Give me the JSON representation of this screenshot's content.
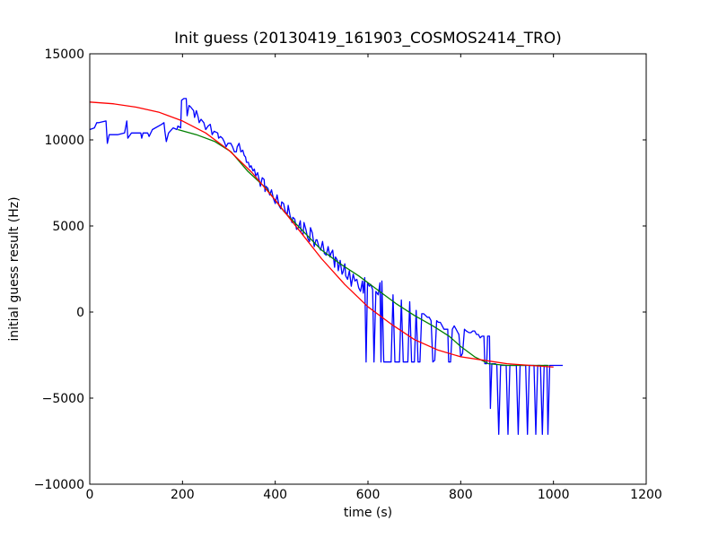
{
  "chart_data": {
    "type": "line",
    "title": "Init guess (20130419_161903_COSMOS2414_TRO)",
    "xlabel": "time (s)",
    "ylabel": "initial guess result (Hz)",
    "xlim": [
      0,
      1200
    ],
    "ylim": [
      -10000,
      15000
    ],
    "xticks": [
      0,
      200,
      400,
      600,
      800,
      1000,
      1200
    ],
    "yticks": [
      -10000,
      -5000,
      0,
      5000,
      10000,
      15000
    ],
    "grid": false,
    "series": [
      {
        "color": "#0000ff",
        "points": [
          [
            0,
            10600
          ],
          [
            10,
            10700
          ],
          [
            15,
            11000
          ],
          [
            20,
            11000
          ],
          [
            35,
            11100
          ],
          [
            38,
            9800
          ],
          [
            42,
            10300
          ],
          [
            60,
            10300
          ],
          [
            75,
            10400
          ],
          [
            80,
            11100
          ],
          [
            82,
            10100
          ],
          [
            90,
            10400
          ],
          [
            110,
            10400
          ],
          [
            112,
            10100
          ],
          [
            115,
            10400
          ],
          [
            125,
            10400
          ],
          [
            128,
            10200
          ],
          [
            135,
            10600
          ],
          [
            155,
            10900
          ],
          [
            160,
            11000
          ],
          [
            162,
            10500
          ],
          [
            165,
            9900
          ],
          [
            170,
            10400
          ],
          [
            180,
            10700
          ],
          [
            188,
            10600
          ],
          [
            190,
            10800
          ],
          [
            196,
            10700
          ],
          [
            198,
            12300
          ],
          [
            203,
            12400
          ],
          [
            208,
            12400
          ],
          [
            210,
            11400
          ],
          [
            214,
            12000
          ],
          [
            218,
            11900
          ],
          [
            224,
            11700
          ],
          [
            226,
            11300
          ],
          [
            230,
            11700
          ],
          [
            234,
            11300
          ],
          [
            236,
            11000
          ],
          [
            240,
            11200
          ],
          [
            246,
            11000
          ],
          [
            250,
            10600
          ],
          [
            255,
            10800
          ],
          [
            260,
            10900
          ],
          [
            264,
            10300
          ],
          [
            268,
            10500
          ],
          [
            276,
            10400
          ],
          [
            278,
            10100
          ],
          [
            282,
            10200
          ],
          [
            286,
            10100
          ],
          [
            290,
            9900
          ],
          [
            294,
            9600
          ],
          [
            298,
            9800
          ],
          [
            304,
            9800
          ],
          [
            308,
            9600
          ],
          [
            312,
            9300
          ],
          [
            316,
            9300
          ],
          [
            318,
            9600
          ],
          [
            322,
            9800
          ],
          [
            326,
            9300
          ],
          [
            330,
            9400
          ],
          [
            333,
            9100
          ],
          [
            336,
            9000
          ],
          [
            338,
            8700
          ],
          [
            342,
            8700
          ],
          [
            345,
            8400
          ],
          [
            348,
            8500
          ],
          [
            352,
            8200
          ],
          [
            355,
            8300
          ],
          [
            358,
            7900
          ],
          [
            362,
            8100
          ],
          [
            366,
            7600
          ],
          [
            368,
            7300
          ],
          [
            372,
            7800
          ],
          [
            376,
            7700
          ],
          [
            378,
            7000
          ],
          [
            380,
            7300
          ],
          [
            384,
            7200
          ],
          [
            388,
            6800
          ],
          [
            392,
            7100
          ],
          [
            396,
            6600
          ],
          [
            400,
            6300
          ],
          [
            404,
            6800
          ],
          [
            408,
            6200
          ],
          [
            412,
            6000
          ],
          [
            414,
            6400
          ],
          [
            418,
            6300
          ],
          [
            422,
            5800
          ],
          [
            426,
            5700
          ],
          [
            428,
            6200
          ],
          [
            432,
            5600
          ],
          [
            436,
            5200
          ],
          [
            438,
            5500
          ],
          [
            442,
            5400
          ],
          [
            446,
            4800
          ],
          [
            450,
            4900
          ],
          [
            454,
            5300
          ],
          [
            456,
            4600
          ],
          [
            460,
            4500
          ],
          [
            462,
            5200
          ],
          [
            466,
            4800
          ],
          [
            470,
            4300
          ],
          [
            474,
            4100
          ],
          [
            476,
            4900
          ],
          [
            480,
            4600
          ],
          [
            484,
            3800
          ],
          [
            488,
            4200
          ],
          [
            490,
            4200
          ],
          [
            494,
            3800
          ],
          [
            498,
            3600
          ],
          [
            502,
            4100
          ],
          [
            506,
            3400
          ],
          [
            510,
            3300
          ],
          [
            514,
            3800
          ],
          [
            518,
            3200
          ],
          [
            520,
            3400
          ],
          [
            524,
            3600
          ],
          [
            528,
            2600
          ],
          [
            530,
            3200
          ],
          [
            534,
            3000
          ],
          [
            536,
            2400
          ],
          [
            540,
            3000
          ],
          [
            544,
            2200
          ],
          [
            546,
            2300
          ],
          [
            550,
            2800
          ],
          [
            552,
            2100
          ],
          [
            556,
            1900
          ],
          [
            560,
            2400
          ],
          [
            564,
            1500
          ],
          [
            568,
            2200
          ],
          [
            572,
            1800
          ],
          [
            576,
            1900
          ],
          [
            580,
            1400
          ],
          [
            584,
            1200
          ],
          [
            588,
            1800
          ],
          [
            590,
            1100
          ],
          [
            593,
            2000
          ],
          [
            596,
            -2900
          ],
          [
            599,
            1700
          ],
          [
            603,
            1500
          ],
          [
            606,
            1600
          ],
          [
            610,
            1300
          ],
          [
            613,
            -2900
          ],
          [
            617,
            1200
          ],
          [
            622,
            1000
          ],
          [
            626,
            1700
          ],
          [
            628,
            -2900
          ],
          [
            630,
            1800
          ],
          [
            634,
            -2900
          ],
          [
            650,
            -2900
          ],
          [
            654,
            1000
          ],
          [
            658,
            -2900
          ],
          [
            668,
            -2900
          ],
          [
            672,
            700
          ],
          [
            676,
            -2900
          ],
          [
            686,
            -2900
          ],
          [
            690,
            600
          ],
          [
            694,
            -2900
          ],
          [
            700,
            -2900
          ],
          [
            704,
            100
          ],
          [
            708,
            -2900
          ],
          [
            712,
            -2900
          ],
          [
            716,
            -100
          ],
          [
            720,
            -100
          ],
          [
            724,
            -200
          ],
          [
            728,
            -300
          ],
          [
            732,
            -300
          ],
          [
            736,
            -500
          ],
          [
            740,
            -2900
          ],
          [
            744,
            -2800
          ],
          [
            748,
            -500
          ],
          [
            752,
            -600
          ],
          [
            756,
            -600
          ],
          [
            760,
            -800
          ],
          [
            764,
            -1000
          ],
          [
            768,
            -1000
          ],
          [
            772,
            -1000
          ],
          [
            774,
            -2900
          ],
          [
            778,
            -2900
          ],
          [
            782,
            -1000
          ],
          [
            786,
            -800
          ],
          [
            790,
            -1000
          ],
          [
            794,
            -1200
          ],
          [
            796,
            -1300
          ],
          [
            800,
            -2600
          ],
          [
            804,
            -2400
          ],
          [
            808,
            -1000
          ],
          [
            812,
            -1100
          ],
          [
            818,
            -1200
          ],
          [
            822,
            -1200
          ],
          [
            826,
            -1100
          ],
          [
            830,
            -1100
          ],
          [
            834,
            -1300
          ],
          [
            838,
            -1300
          ],
          [
            842,
            -1500
          ],
          [
            846,
            -1400
          ],
          [
            850,
            -1400
          ],
          [
            852,
            -3000
          ],
          [
            856,
            -3000
          ],
          [
            858,
            -1400
          ],
          [
            862,
            -1400
          ],
          [
            864,
            -5600
          ],
          [
            867,
            -3000
          ],
          [
            875,
            -3000
          ],
          [
            878,
            -3100
          ],
          [
            882,
            -7100
          ],
          [
            886,
            -3100
          ],
          [
            898,
            -3100
          ],
          [
            902,
            -7100
          ],
          [
            906,
            -3100
          ],
          [
            920,
            -3100
          ],
          [
            924,
            -7100
          ],
          [
            928,
            -3100
          ],
          [
            940,
            -3100
          ],
          [
            944,
            -7100
          ],
          [
            948,
            -3100
          ],
          [
            958,
            -3100
          ],
          [
            962,
            -7100
          ],
          [
            966,
            -3100
          ],
          [
            972,
            -3100
          ],
          [
            976,
            -7100
          ],
          [
            980,
            -3100
          ],
          [
            986,
            -3100
          ],
          [
            988,
            -7100
          ],
          [
            992,
            -3100
          ],
          [
            1000,
            -3100
          ],
          [
            1010,
            -3100
          ],
          [
            1020,
            -3100
          ]
        ]
      },
      {
        "color": "#008000",
        "points": [
          [
            190,
            10600
          ],
          [
            230,
            10300
          ],
          [
            270,
            9900
          ],
          [
            305,
            9300
          ],
          [
            340,
            8200
          ],
          [
            380,
            7200
          ],
          [
            420,
            5800
          ],
          [
            460,
            4700
          ],
          [
            500,
            3600
          ],
          [
            540,
            2800
          ],
          [
            580,
            2100
          ],
          [
            620,
            1300
          ],
          [
            660,
            500
          ],
          [
            700,
            -200
          ],
          [
            740,
            -800
          ],
          [
            775,
            -1400
          ],
          [
            800,
            -2000
          ],
          [
            830,
            -2600
          ],
          [
            860,
            -3000
          ],
          [
            900,
            -3100
          ],
          [
            940,
            -3100
          ],
          [
            980,
            -3100
          ],
          [
            990,
            -3100
          ]
        ]
      },
      {
        "color": "#ff0000",
        "points": [
          [
            0,
            12200
          ],
          [
            50,
            12100
          ],
          [
            100,
            11900
          ],
          [
            150,
            11600
          ],
          [
            200,
            11100
          ],
          [
            250,
            10400
          ],
          [
            300,
            9400
          ],
          [
            350,
            8100
          ],
          [
            400,
            6500
          ],
          [
            450,
            4800
          ],
          [
            500,
            3100
          ],
          [
            550,
            1600
          ],
          [
            600,
            300
          ],
          [
            650,
            -700
          ],
          [
            700,
            -1600
          ],
          [
            750,
            -2200
          ],
          [
            800,
            -2600
          ],
          [
            850,
            -2800
          ],
          [
            900,
            -3000
          ],
          [
            950,
            -3100
          ],
          [
            1000,
            -3200
          ]
        ]
      }
    ]
  }
}
